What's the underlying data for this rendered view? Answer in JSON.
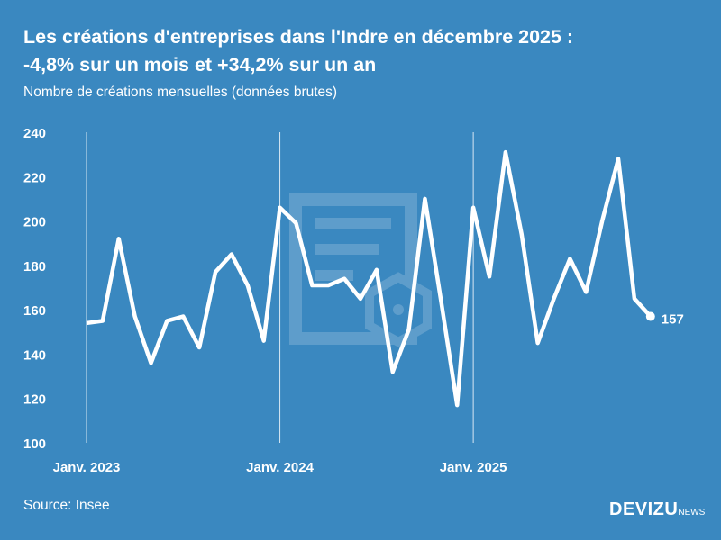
{
  "title_line1": "Les créations d'entreprises dans l'Indre en décembre 2025 :",
  "title_line2": "-4,8% sur un mois et +34,2% sur un an",
  "subtitle": "Nombre de créations mensuelles (données brutes)",
  "source": "Source: Insee",
  "logo": {
    "main": "DEVIZU",
    "suffix": "NEWS"
  },
  "colors": {
    "background": "#3a88c0",
    "line": "#ffffff"
  },
  "chart_data": {
    "type": "line",
    "title": "Les créations d'entreprises dans l'Indre en décembre 2025 : -4,8% sur un mois et +34,2% sur un an",
    "subtitle": "Nombre de créations mensuelles (données brutes)",
    "xlabel": "",
    "ylabel": "",
    "ylim": [
      100,
      240
    ],
    "yticks": [
      100,
      120,
      140,
      160,
      180,
      200,
      220,
      240
    ],
    "xtick_labels": [
      "Janv. 2023",
      "Janv. 2024",
      "Janv. 2025"
    ],
    "grid": "vertical lines at January",
    "x": [
      "2023-01",
      "2023-02",
      "2023-03",
      "2023-04",
      "2023-05",
      "2023-06",
      "2023-07",
      "2023-08",
      "2023-09",
      "2023-10",
      "2023-11",
      "2023-12",
      "2024-01",
      "2024-02",
      "2024-03",
      "2024-04",
      "2024-05",
      "2024-06",
      "2024-07",
      "2024-08",
      "2024-09",
      "2024-10",
      "2024-11",
      "2024-12",
      "2025-01",
      "2025-02",
      "2025-03",
      "2025-04",
      "2025-05",
      "2025-06",
      "2025-07",
      "2025-08",
      "2025-09",
      "2025-10",
      "2025-11",
      "2025-12"
    ],
    "values": [
      154,
      155,
      192,
      157,
      136,
      155,
      157,
      143,
      177,
      185,
      171,
      146,
      206,
      199,
      171,
      171,
      174,
      165,
      178,
      132,
      151,
      210,
      164,
      117,
      206,
      175,
      231,
      194,
      145,
      165,
      183,
      168,
      200,
      228,
      165,
      157
    ],
    "last_label": "157"
  }
}
